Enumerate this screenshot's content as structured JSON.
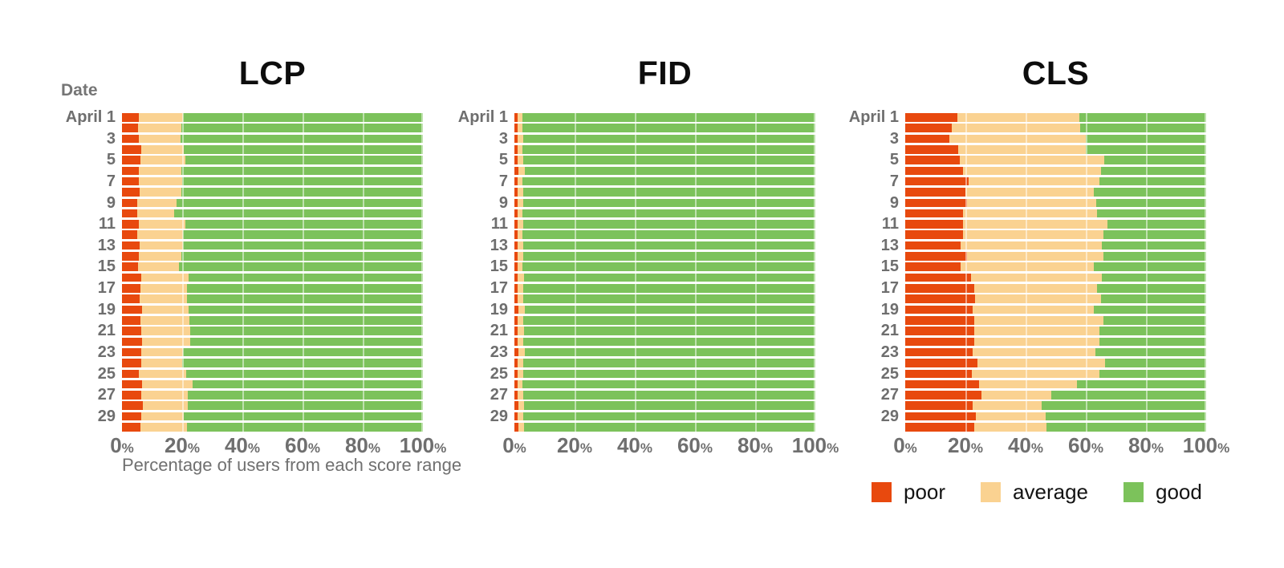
{
  "page": {
    "background": "#ffffff"
  },
  "colors": {
    "poor": "#E8490E",
    "average": "#FAD291",
    "good": "#7CC25B",
    "axis_text": "#6f6f6f",
    "date_text": "#6e6e6e",
    "title_text": "#0d0d0d",
    "gridline": "rgba(255,255,255,0.5)"
  },
  "legend": {
    "position": "bottom-right",
    "items": [
      {
        "label": "poor",
        "color": "#E8490E"
      },
      {
        "label": "average",
        "color": "#FAD291"
      },
      {
        "label": "good",
        "color": "#7CC25B"
      }
    ]
  },
  "chart_data": [
    {
      "type": "stacked_bar_horizontal",
      "title": "LCP",
      "y_axis_label": "Date",
      "x_axis_label": "Percentage of users from each score range",
      "x_axis": {
        "range": [
          0,
          100
        ],
        "ticks": [
          "0%",
          "20%",
          "40%",
          "60%",
          "80%",
          "100%"
        ]
      },
      "categories": [
        "April 1",
        "April 2",
        "April 3",
        "April 4",
        "April 5",
        "April 6",
        "April 7",
        "April 8",
        "April 9",
        "April 10",
        "April 11",
        "April 12",
        "April 13",
        "April 14",
        "April 15",
        "April 16",
        "April 17",
        "April 18",
        "April 19",
        "April 20",
        "April 21",
        "April 22",
        "April 23",
        "April 24",
        "April 25",
        "April 26",
        "April 27",
        "April 28",
        "April 29",
        "April 30"
      ],
      "row_labels": [
        "April 1",
        "",
        "3",
        "",
        "5",
        "",
        "7",
        "",
        "9",
        "",
        "11",
        "",
        "13",
        "",
        "15",
        "",
        "17",
        "",
        "19",
        "",
        "21",
        "",
        "23",
        "",
        "25",
        "",
        "27",
        "",
        "29",
        ""
      ],
      "series": [
        {
          "name": "poor",
          "values": [
            5.5,
            5.4,
            5.5,
            6.4,
            6.2,
            5.5,
            5.5,
            5.9,
            5.1,
            5.0,
            5.6,
            5.2,
            5.9,
            5.5,
            5.3,
            6.3,
            6.0,
            5.8,
            6.7,
            6.2,
            6.4,
            6.7,
            6.5,
            6.3,
            5.6,
            6.7,
            6.3,
            7.0,
            6.3,
            6.2
          ]
        },
        {
          "name": "average",
          "values": [
            14.7,
            14.3,
            14.0,
            14.1,
            14.8,
            14.3,
            14.5,
            13.9,
            13.0,
            12.2,
            15.4,
            15.1,
            14.4,
            14.2,
            13.7,
            15.8,
            15.7,
            15.7,
            15.4,
            16.3,
            16.2,
            15.9,
            13.8,
            13.7,
            15.8,
            16.7,
            15.5,
            14.8,
            14.1,
            15.5
          ]
        },
        {
          "name": "good",
          "values": [
            79.8,
            80.3,
            80.5,
            79.5,
            79.0,
            80.2,
            80.0,
            80.2,
            81.9,
            82.8,
            79.0,
            79.7,
            79.7,
            80.3,
            81.0,
            77.9,
            78.3,
            78.5,
            77.9,
            77.5,
            77.4,
            77.4,
            79.7,
            80.0,
            78.6,
            76.6,
            78.2,
            78.2,
            79.6,
            78.3
          ]
        }
      ]
    },
    {
      "type": "stacked_bar_horizontal",
      "title": "FID",
      "x_axis": {
        "range": [
          0,
          100
        ],
        "ticks": [
          "0%",
          "20%",
          "40%",
          "60%",
          "80%",
          "100%"
        ]
      },
      "categories": [
        "April 1",
        "April 2",
        "April 3",
        "April 4",
        "April 5",
        "April 6",
        "April 7",
        "April 8",
        "April 9",
        "April 10",
        "April 11",
        "April 12",
        "April 13",
        "April 14",
        "April 15",
        "April 16",
        "April 17",
        "April 18",
        "April 19",
        "April 20",
        "April 21",
        "April 22",
        "April 23",
        "April 24",
        "April 25",
        "April 26",
        "April 27",
        "April 28",
        "April 29",
        "April 30"
      ],
      "row_labels": [
        "April 1",
        "",
        "3",
        "",
        "5",
        "",
        "7",
        "",
        "9",
        "",
        "11",
        "",
        "13",
        "",
        "15",
        "",
        "17",
        "",
        "19",
        "",
        "21",
        "",
        "23",
        "",
        "25",
        "",
        "27",
        "",
        "29",
        ""
      ],
      "series": [
        {
          "name": "poor",
          "values": [
            1.0,
            1.0,
            1.1,
            1.0,
            1.0,
            1.2,
            1.0,
            1.0,
            1.1,
            1.0,
            1.1,
            1.0,
            1.1,
            1.0,
            1.0,
            1.1,
            1.0,
            1.1,
            1.2,
            1.0,
            1.1,
            1.0,
            1.2,
            1.0,
            1.1,
            1.0,
            1.1,
            1.2,
            1.1,
            1.2
          ]
        },
        {
          "name": "average",
          "values": [
            1.6,
            1.7,
            1.8,
            1.6,
            1.8,
            2.3,
            1.7,
            1.8,
            1.9,
            1.7,
            1.8,
            1.6,
            1.9,
            1.8,
            1.7,
            2.0,
            1.8,
            1.9,
            2.2,
            1.8,
            2.1,
            1.8,
            2.2,
            1.9,
            1.8,
            1.7,
            1.9,
            2.0,
            1.8,
            2.1
          ]
        },
        {
          "name": "good",
          "values": [
            97.4,
            97.3,
            97.1,
            97.4,
            97.2,
            96.5,
            97.3,
            97.2,
            97.0,
            97.3,
            97.1,
            97.4,
            97.0,
            97.2,
            97.3,
            96.9,
            97.2,
            97.0,
            96.6,
            97.2,
            96.8,
            97.2,
            96.6,
            97.1,
            97.1,
            97.3,
            97.0,
            96.8,
            97.1,
            96.7
          ]
        }
      ]
    },
    {
      "type": "stacked_bar_horizontal",
      "title": "CLS",
      "x_axis": {
        "range": [
          0,
          100
        ],
        "ticks": [
          "0%",
          "20%",
          "40%",
          "60%",
          "80%",
          "100%"
        ]
      },
      "categories": [
        "April 1",
        "April 2",
        "April 3",
        "April 4",
        "April 5",
        "April 6",
        "April 7",
        "April 8",
        "April 9",
        "April 10",
        "April 11",
        "April 12",
        "April 13",
        "April 14",
        "April 15",
        "April 16",
        "April 17",
        "April 18",
        "April 19",
        "April 20",
        "April 21",
        "April 22",
        "April 23",
        "April 24",
        "April 25",
        "April 26",
        "April 27",
        "April 28",
        "April 29",
        "April 30"
      ],
      "row_labels": [
        "April 1",
        "",
        "3",
        "",
        "5",
        "",
        "7",
        "",
        "9",
        "",
        "11",
        "",
        "13",
        "",
        "15",
        "",
        "17",
        "",
        "19",
        "",
        "21",
        "",
        "23",
        "",
        "25",
        "",
        "27",
        "",
        "29",
        ""
      ],
      "series": [
        {
          "name": "poor",
          "values": [
            17.3,
            15.4,
            14.7,
            17.7,
            18.1,
            19.2,
            21.1,
            20.1,
            20.5,
            19.2,
            19.2,
            19.2,
            18.5,
            20.5,
            18.5,
            21.9,
            22.9,
            23.2,
            22.5,
            22.9,
            22.9,
            22.9,
            22.5,
            23.9,
            22.0,
            24.5,
            25.2,
            22.5,
            23.5,
            22.9
          ]
        },
        {
          "name": "average",
          "values": [
            40.6,
            42.7,
            45.4,
            42.4,
            48.0,
            45.8,
            43.4,
            42.5,
            43.1,
            44.4,
            48.0,
            46.7,
            46.7,
            45.4,
            44.1,
            43.3,
            40.9,
            41.8,
            40.1,
            43.0,
            41.6,
            41.5,
            40.7,
            42.6,
            42.4,
            32.5,
            23.3,
            22.9,
            23.1,
            24.1
          ]
        },
        {
          "name": "good",
          "values": [
            42.1,
            41.9,
            39.9,
            39.9,
            33.9,
            35.0,
            35.5,
            37.4,
            36.4,
            36.4,
            32.8,
            34.1,
            34.8,
            34.1,
            37.4,
            34.8,
            36.2,
            35.0,
            37.4,
            34.1,
            35.5,
            35.6,
            36.8,
            33.5,
            35.6,
            43.0,
            51.5,
            54.6,
            53.4,
            53.1
          ]
        }
      ]
    }
  ]
}
